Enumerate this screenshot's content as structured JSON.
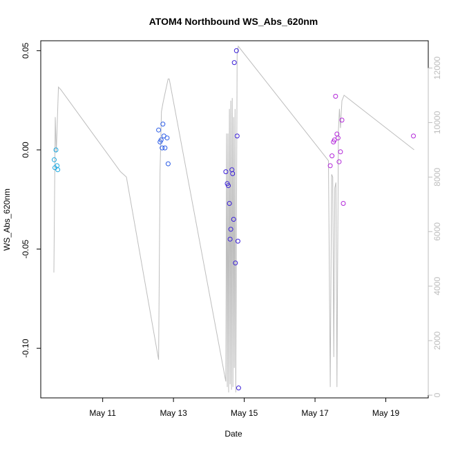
{
  "chart_data": {
    "type": "scatter",
    "title": "ATOM4 Northbound WS_Abs_620nm",
    "xlabel": "Date",
    "ylabel": "WS_Abs_620nm",
    "x_units": "days in May (day-of-month)",
    "xlim": [
      9.25,
      20.2
    ],
    "ylim": [
      -0.125,
      0.055
    ],
    "y2lim": [
      -100,
      13000
    ],
    "x_ticks": [
      {
        "value": 11,
        "label": "May 11"
      },
      {
        "value": 13,
        "label": "May 13"
      },
      {
        "value": 15,
        "label": "May 15"
      },
      {
        "value": 17,
        "label": "May 17"
      },
      {
        "value": 19,
        "label": "May 19"
      }
    ],
    "y_ticks": [
      {
        "value": 0.05,
        "label": "0.05"
      },
      {
        "value": 0.0,
        "label": "0.00"
      },
      {
        "value": -0.05,
        "label": "-0.05"
      },
      {
        "value": -0.1,
        "label": "-0.10"
      }
    ],
    "y2_ticks": [
      {
        "value": 0,
        "label": "0"
      },
      {
        "value": 2000,
        "label": "2000"
      },
      {
        "value": 4000,
        "label": "4000"
      },
      {
        "value": 6000,
        "label": "6000"
      },
      {
        "value": 8000,
        "label": "8000"
      },
      {
        "value": 10000,
        "label": "10000"
      },
      {
        "value": 12000,
        "label": "12000"
      }
    ],
    "grid": false,
    "legend": "none",
    "line_color": "#bdbdbd",
    "line_series": {
      "x": [
        9.62,
        9.66,
        9.69,
        9.75,
        9.82,
        11.5,
        11.67,
        12.58,
        12.62,
        12.66,
        12.7,
        12.75,
        12.85,
        12.88,
        14.48,
        14.5,
        14.52,
        14.54,
        14.56,
        14.58,
        14.6,
        14.62,
        14.64,
        14.66,
        14.68,
        14.7,
        14.72,
        14.74,
        14.76,
        14.8,
        14.83,
        17.38,
        17.43,
        17.47,
        17.5,
        17.53,
        17.56,
        17.59,
        17.62,
        17.66,
        17.69,
        17.72,
        17.76,
        17.82,
        19.8
      ],
      "y": [
        4500,
        10200,
        8900,
        11300,
        11200,
        8200,
        8000,
        1300,
        8200,
        10400,
        10700,
        11000,
        11600,
        11600,
        500,
        9600,
        300,
        9600,
        100,
        10500,
        400,
        10800,
        200,
        10900,
        300,
        10200,
        1000,
        10500,
        100,
        12500,
        12800,
        8600,
        300,
        8100,
        8000,
        1400,
        7600,
        7800,
        300,
        9700,
        10500,
        9800,
        10800,
        11000,
        9000
      ]
    },
    "series": [
      {
        "color": "#1aa8e0",
        "x": [
          9.63,
          9.65,
          9.68,
          9.71,
          9.73
        ],
        "y": [
          -0.005,
          -0.009,
          0.0,
          -0.008,
          -0.01
        ]
      },
      {
        "color": "#2b5ce6",
        "x": [
          12.58,
          12.62,
          12.65,
          12.68,
          12.7,
          12.73,
          12.76,
          12.82
        ],
        "y": [
          0.01,
          0.004,
          0.005,
          0.001,
          0.013,
          0.007,
          0.001,
          0.006
        ]
      },
      {
        "color": "#2b5ce6",
        "x": [
          12.85
        ],
        "y": [
          -0.007
        ]
      },
      {
        "color": "#3a1fd8",
        "x": [
          14.48,
          14.52,
          14.55,
          14.58,
          14.6,
          14.62,
          14.65,
          14.67,
          14.7,
          14.72,
          14.75,
          14.78,
          14.8,
          14.82,
          14.84
        ],
        "y": [
          -0.011,
          -0.017,
          -0.018,
          -0.027,
          -0.045,
          -0.04,
          -0.01,
          -0.012,
          -0.035,
          0.044,
          -0.057,
          0.05,
          0.007,
          -0.046,
          -0.12
        ]
      },
      {
        "color": "#b226d9",
        "x": [
          17.43,
          17.48,
          17.52,
          17.55,
          17.58,
          17.62,
          17.65,
          17.68,
          17.72,
          17.76,
          17.8,
          19.78
        ],
        "y": [
          -0.008,
          -0.003,
          0.004,
          0.005,
          0.027,
          0.008,
          0.006,
          -0.006,
          -0.001,
          0.015,
          -0.027,
          0.007
        ]
      }
    ]
  }
}
